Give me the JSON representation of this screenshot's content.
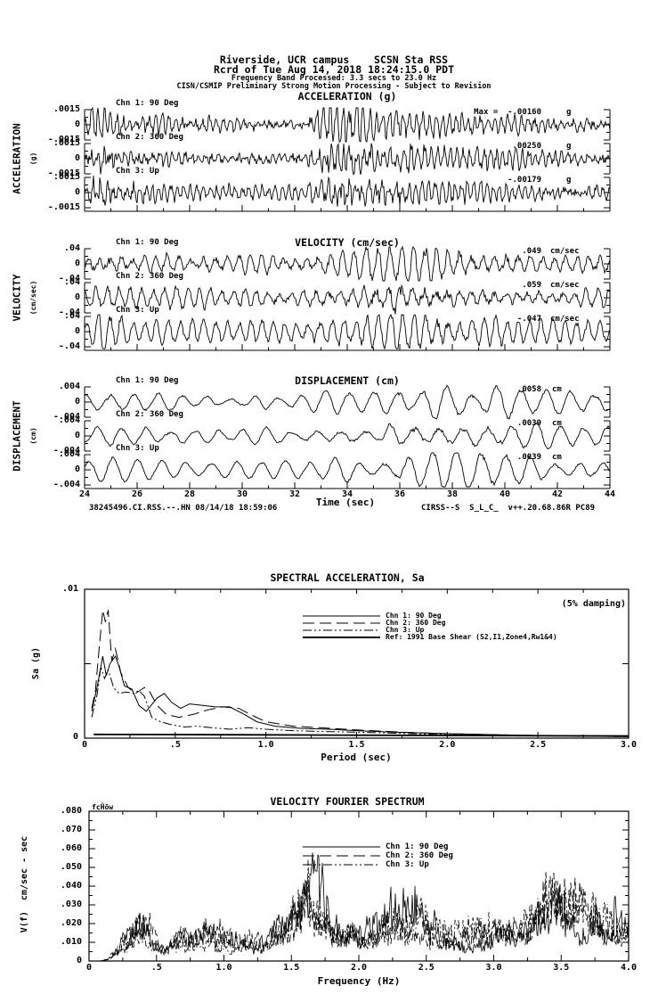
{
  "header": {
    "line1": "Riverside, UCR campus    SCSN Sta RSS",
    "line2": "Rcrd of Tue Aug 14, 2018 18:24:15.0 PDT",
    "line3": "Frequency Band Processed: 3.3 secs to 23.0 Hz",
    "line4": "CISN/CSMIP Preliminary Strong Motion Processing - Subject to Revision"
  },
  "footer": {
    "left": "38245496.CI.RSS.--.HN 08/14/18 18:59:06",
    "right": "CIRSS--S  S_L_C_  v++.20.68.86R PC89"
  },
  "colors": {
    "ink": "#000000",
    "paper": "#ffffff"
  },
  "chart_data": [
    {
      "type": "line",
      "id": "acceleration-time-series",
      "title": "ACCELERATION (g)",
      "side_label": "ACCELERATION",
      "side_unit": "(g)",
      "units": "g",
      "ylim": [
        -0.0015,
        0.0015
      ],
      "y_ticks": [
        ".0015",
        "0",
        "-.0015"
      ],
      "x_range": [
        24,
        44
      ],
      "channels": [
        {
          "label": "Chn 1: 90 Deg",
          "peak_label": "Max =  -.00160",
          "peak": -0.0016,
          "unit": "g"
        },
        {
          "label": "Chn 2: 360 Deg",
          "peak_label": ".00250",
          "peak": 0.0025,
          "unit": "g"
        },
        {
          "label": "Chn 3: Up",
          "peak_label": "-.00179",
          "peak": -0.00179,
          "unit": "g"
        }
      ],
      "envelope": [
        [
          0,
          0.25
        ],
        [
          0.02,
          0.85
        ],
        [
          0.08,
          0.5
        ],
        [
          0.2,
          0.33
        ],
        [
          0.42,
          0.3
        ],
        [
          0.47,
          1.0
        ],
        [
          0.55,
          0.75
        ],
        [
          0.65,
          0.5
        ],
        [
          0.8,
          0.4
        ],
        [
          1,
          0.32
        ]
      ]
    },
    {
      "type": "line",
      "id": "velocity-time-series",
      "title": "VELOCITY (cm/sec)",
      "side_label": "VELOCITY",
      "side_unit": "(cm/sec)",
      "units": "cm/sec",
      "ylim": [
        -0.04,
        0.04
      ],
      "y_ticks": [
        ".04",
        "0",
        "-.04"
      ],
      "x_range": [
        24,
        44
      ],
      "channels": [
        {
          "label": "Chn 1: 90 Deg",
          "peak_label": ".049",
          "peak": 0.049,
          "unit": "cm/sec"
        },
        {
          "label": "Chn 2: 360 Deg",
          "peak_label": ".059",
          "peak": 0.059,
          "unit": "cm/sec"
        },
        {
          "label": "Chn 3: Up",
          "peak_label": "-.047",
          "peak": -0.047,
          "unit": "cm/sec"
        }
      ],
      "envelope": [
        [
          0,
          0.4
        ],
        [
          0.03,
          0.9
        ],
        [
          0.1,
          0.55
        ],
        [
          0.3,
          0.45
        ],
        [
          0.5,
          0.62
        ],
        [
          0.58,
          1.0
        ],
        [
          0.7,
          0.8
        ],
        [
          0.85,
          0.55
        ],
        [
          1,
          0.45
        ]
      ]
    },
    {
      "type": "line",
      "id": "displacement-time-series",
      "title": "DISPLACEMENT (cm)",
      "side_label": "DISPLACEMENT",
      "side_unit": "(cm)",
      "units": "cm",
      "ylim": [
        -0.004,
        0.004
      ],
      "y_ticks": [
        ".004",
        "0",
        "-.004"
      ],
      "x_range": [
        24,
        44
      ],
      "xlabel": "Time (sec)",
      "x_tick_labels": [
        "24",
        "26",
        "28",
        "30",
        "32",
        "34",
        "36",
        "38",
        "40",
        "42",
        "44"
      ],
      "channels": [
        {
          "label": "Chn 1: 90 Deg",
          "peak_label": ".0058",
          "peak": 0.0058,
          "unit": "cm"
        },
        {
          "label": "Chn 2: 360 Deg",
          "peak_label": ".0039",
          "peak": 0.0039,
          "unit": "cm"
        },
        {
          "label": "Chn 3: Up",
          "peak_label": ".0039",
          "peak": 0.0039,
          "unit": "cm"
        }
      ],
      "envelope": [
        [
          0,
          0.45
        ],
        [
          0.05,
          0.6
        ],
        [
          0.2,
          0.35
        ],
        [
          0.4,
          0.42
        ],
        [
          0.55,
          0.7
        ],
        [
          0.68,
          1.0
        ],
        [
          0.78,
          0.9
        ],
        [
          0.9,
          0.55
        ],
        [
          1,
          0.5
        ]
      ]
    },
    {
      "type": "line",
      "id": "spectral-acceleration",
      "title": "SPECTRAL ACCELERATION, Sa",
      "annotation": "(5% damping)",
      "ylabel": "Sa (g)",
      "xlabel": "Period (sec)",
      "ylim": [
        0,
        0.01
      ],
      "y_tick_labels": [
        ".01",
        "0"
      ],
      "xlim": [
        0,
        3.0
      ],
      "x_tick_labels": [
        "0",
        ".5",
        "1.0",
        "1.5",
        "2.0",
        "2.5",
        "3.0"
      ],
      "legend": [
        {
          "label": "Chn 1: 90 Deg",
          "style": "solid"
        },
        {
          "label": "Chn 2: 360 Deg",
          "style": "longdash"
        },
        {
          "label": "Chn 3: Up",
          "style": "dashdotdot"
        },
        {
          "label": "Ref: 1991 Base Shear (S2,I1,Zone4,Rw1&4)",
          "style": "thick"
        }
      ],
      "series": [
        {
          "name": "Chn 1: 90 Deg",
          "style": "solid",
          "points": [
            [
              0.04,
              0.0018
            ],
            [
              0.07,
              0.0035
            ],
            [
              0.1,
              0.0055
            ],
            [
              0.12,
              0.0042
            ],
            [
              0.14,
              0.005
            ],
            [
              0.17,
              0.0055
            ],
            [
              0.19,
              0.0048
            ],
            [
              0.22,
              0.0035
            ],
            [
              0.26,
              0.0033
            ],
            [
              0.3,
              0.0022
            ],
            [
              0.34,
              0.0018
            ],
            [
              0.4,
              0.0027
            ],
            [
              0.44,
              0.003
            ],
            [
              0.48,
              0.0024
            ],
            [
              0.53,
              0.002
            ],
            [
              0.58,
              0.0023
            ],
            [
              0.65,
              0.0022
            ],
            [
              0.72,
              0.0021
            ],
            [
              0.8,
              0.0021
            ],
            [
              0.88,
              0.0016
            ],
            [
              0.95,
              0.0011
            ],
            [
              1.05,
              0.0008
            ],
            [
              1.2,
              0.00065
            ],
            [
              1.35,
              0.0006
            ],
            [
              1.5,
              0.0005
            ],
            [
              1.7,
              0.0004
            ],
            [
              2.0,
              0.0003
            ],
            [
              2.3,
              0.00022
            ],
            [
              2.6,
              0.00015
            ],
            [
              3.0,
              0.0001
            ]
          ]
        },
        {
          "name": "Chn 2: 360 Deg",
          "style": "longdash",
          "points": [
            [
              0.04,
              0.002
            ],
            [
              0.06,
              0.0032
            ],
            [
              0.08,
              0.006
            ],
            [
              0.1,
              0.0086
            ],
            [
              0.115,
              0.0078
            ],
            [
              0.13,
              0.0086
            ],
            [
              0.15,
              0.0052
            ],
            [
              0.17,
              0.006
            ],
            [
              0.2,
              0.0044
            ],
            [
              0.24,
              0.0034
            ],
            [
              0.28,
              0.003
            ],
            [
              0.33,
              0.0034
            ],
            [
              0.36,
              0.0031
            ],
            [
              0.4,
              0.0022
            ],
            [
              0.45,
              0.0016
            ],
            [
              0.52,
              0.0014
            ],
            [
              0.6,
              0.0016
            ],
            [
              0.68,
              0.0019
            ],
            [
              0.76,
              0.0021
            ],
            [
              0.85,
              0.002
            ],
            [
              0.93,
              0.0015
            ],
            [
              1.0,
              0.0011
            ],
            [
              1.15,
              0.0008
            ],
            [
              1.3,
              0.0007
            ],
            [
              1.5,
              0.00055
            ],
            [
              1.75,
              0.0004
            ],
            [
              2.0,
              0.0003
            ],
            [
              2.4,
              0.0002
            ],
            [
              2.7,
              0.00015
            ],
            [
              3.0,
              0.0001
            ]
          ]
        },
        {
          "name": "Chn 3: Up",
          "style": "dashdotdot",
          "points": [
            [
              0.04,
              0.0014
            ],
            [
              0.07,
              0.003
            ],
            [
              0.09,
              0.0048
            ],
            [
              0.11,
              0.004
            ],
            [
              0.13,
              0.0046
            ],
            [
              0.16,
              0.0034
            ],
            [
              0.19,
              0.003
            ],
            [
              0.23,
              0.0031
            ],
            [
              0.27,
              0.003
            ],
            [
              0.3,
              0.0032
            ],
            [
              0.33,
              0.0028
            ],
            [
              0.37,
              0.0014
            ],
            [
              0.42,
              0.0011
            ],
            [
              0.48,
              0.0009
            ],
            [
              0.55,
              0.00075
            ],
            [
              0.62,
              0.0008
            ],
            [
              0.7,
              0.0007
            ],
            [
              0.8,
              0.0006
            ],
            [
              0.9,
              0.0007
            ],
            [
              1.0,
              0.0006
            ],
            [
              1.15,
              0.0005
            ],
            [
              1.3,
              0.00045
            ],
            [
              1.5,
              0.0004
            ],
            [
              1.8,
              0.0003
            ],
            [
              2.1,
              0.0002
            ],
            [
              2.5,
              0.00015
            ],
            [
              3.0,
              0.0001
            ]
          ]
        },
        {
          "name": "Ref: 1991 Base Shear (S2,I1,Zone4,Rw1&4)",
          "style": "thick",
          "points": [
            [
              0.05,
              0.00025
            ],
            [
              0.5,
              0.00024
            ],
            [
              1.0,
              0.00022
            ],
            [
              1.5,
              0.0002
            ],
            [
              2.0,
              0.00018
            ],
            [
              2.5,
              0.00016
            ],
            [
              3.0,
              0.00015
            ]
          ]
        }
      ]
    },
    {
      "type": "line",
      "id": "velocity-fourier-spectrum",
      "title": "VELOCITY FOURIER SPECTRUM",
      "corner_label": "fcḦöw",
      "ylabel": "V(f)  cm/sec - sec",
      "xlabel": "Frequency (Hz)",
      "ylim": [
        0,
        0.08
      ],
      "y_tick_labels": [
        ".080",
        ".070",
        ".060",
        ".050",
        ".040",
        ".030",
        ".020",
        ".010",
        "0"
      ],
      "xlim": [
        0,
        4.0
      ],
      "x_tick_labels": [
        "0",
        ".5",
        "1.0",
        "1.5",
        "2.0",
        "2.5",
        "3.0",
        "3.5",
        "4.0"
      ],
      "legend": [
        {
          "label": "Chn 1: 90 Deg",
          "style": "solid"
        },
        {
          "label": "Chn 2: 360 Deg",
          "style": "longdash"
        },
        {
          "label": "Chn 3: Up",
          "style": "dashdotdot"
        }
      ],
      "envelope": [
        [
          0,
          0
        ],
        [
          0.08,
          0.0005
        ],
        [
          0.15,
          0.004
        ],
        [
          0.25,
          0.02
        ],
        [
          0.35,
          0.03
        ],
        [
          0.45,
          0.026
        ],
        [
          0.55,
          0.018
        ],
        [
          0.7,
          0.02
        ],
        [
          0.9,
          0.022
        ],
        [
          1.1,
          0.018
        ],
        [
          1.3,
          0.02
        ],
        [
          1.5,
          0.03
        ],
        [
          1.65,
          0.06
        ],
        [
          1.78,
          0.046
        ],
        [
          1.9,
          0.03
        ],
        [
          2.1,
          0.026
        ],
        [
          2.3,
          0.052
        ],
        [
          2.45,
          0.036
        ],
        [
          2.6,
          0.026
        ],
        [
          2.8,
          0.02
        ],
        [
          3.0,
          0.028
        ],
        [
          3.2,
          0.022
        ],
        [
          3.4,
          0.046
        ],
        [
          3.6,
          0.042
        ],
        [
          3.8,
          0.036
        ],
        [
          4.0,
          0.026
        ]
      ]
    }
  ]
}
